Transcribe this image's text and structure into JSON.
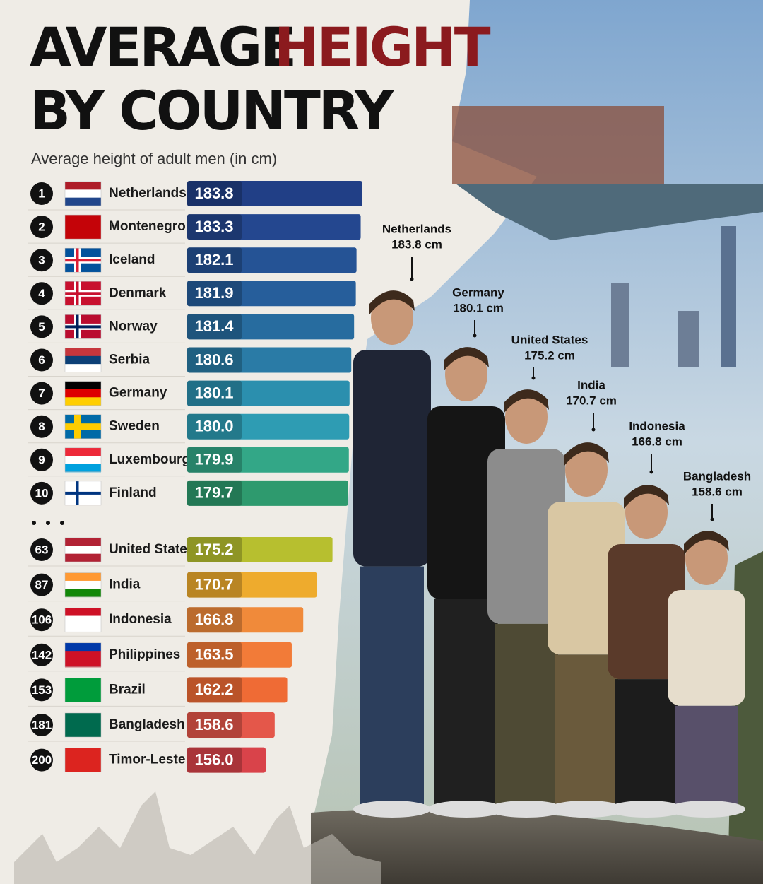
{
  "chart_data": {
    "type": "bar",
    "title_parts": [
      "AVERAGE",
      "HEIGHT",
      "BY COUNTRY"
    ],
    "subtitle": "Average height of adult men (in cm)",
    "ranks": [
      1,
      2,
      3,
      4,
      5,
      6,
      7,
      8,
      9,
      10,
      63,
      87,
      106,
      142,
      153,
      181,
      200
    ],
    "categories": [
      "Netherlands",
      "Montenegro",
      "Iceland",
      "Denmark",
      "Norway",
      "Serbia",
      "Germany",
      "Sweden",
      "Luxembourg",
      "Finland",
      "United States",
      "India",
      "Indonesia",
      "Philippines",
      "Brazil",
      "Bangladesh",
      "Timor-Leste"
    ],
    "values": [
      183.8,
      183.3,
      182.1,
      181.9,
      181.4,
      180.6,
      180.1,
      180.0,
      179.9,
      179.7,
      175.2,
      170.7,
      166.8,
      163.5,
      162.2,
      158.6,
      156.0
    ],
    "value_labels": [
      "183.8",
      "183.3",
      "182.1",
      "181.9",
      "181.4",
      "180.6",
      "180.1",
      "180.0",
      "179.9",
      "179.7",
      "175.2",
      "170.7",
      "166.8",
      "163.5",
      "162.2",
      "158.6",
      "156.0"
    ],
    "colors": [
      "#213f86",
      "#24478f",
      "#255395",
      "#265e9b",
      "#276c9f",
      "#2a7ba6",
      "#2b8fae",
      "#2e9cb3",
      "#33a787",
      "#2e9a6e",
      "#b7bf2f",
      "#eeab2d",
      "#f08a3a",
      "#f27b38",
      "#ef6b35",
      "#e4574a",
      "#d9434a"
    ],
    "annotations": [
      {
        "name": "Netherlands",
        "label": "183.8 cm"
      },
      {
        "name": "Germany",
        "label": "180.1 cm"
      },
      {
        "name": "United States",
        "label": "175.2 cm"
      },
      {
        "name": "India",
        "label": "170.7 cm"
      },
      {
        "name": "Indonesia",
        "label": "166.8 cm"
      },
      {
        "name": "Bangladesh",
        "label": "158.6 cm"
      }
    ]
  }
}
